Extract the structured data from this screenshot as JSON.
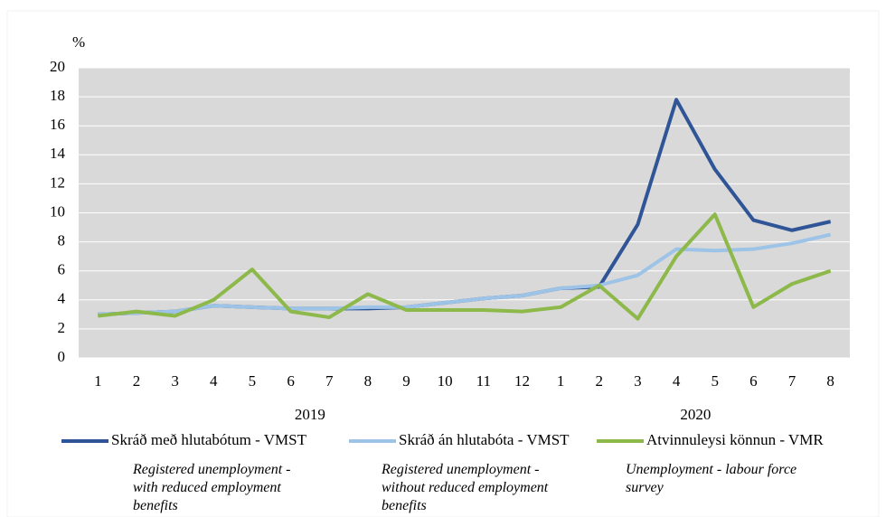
{
  "chart_data": {
    "type": "line",
    "y_label": "%",
    "groups": [
      {
        "label": "2019",
        "months": [
          "1",
          "2",
          "3",
          "4",
          "5",
          "6",
          "7",
          "8",
          "9",
          "10",
          "11",
          "12"
        ]
      },
      {
        "label": "2020",
        "months": [
          "1",
          "2",
          "3",
          "4",
          "5",
          "6",
          "7",
          "8"
        ]
      }
    ],
    "series": [
      {
        "name": "Skráð með hlutabótum - VMST",
        "color": "#2f5597",
        "values": [
          3.0,
          3.1,
          3.2,
          3.6,
          3.5,
          3.4,
          3.4,
          3.4,
          3.5,
          3.8,
          4.1,
          4.3,
          4.8,
          4.9,
          9.2,
          17.8,
          13.0,
          9.5,
          8.8,
          9.4
        ]
      },
      {
        "name": "Skráð án hlutabóta - VMST",
        "color": "#9dc3e6",
        "values": [
          3.0,
          3.1,
          3.2,
          3.6,
          3.5,
          3.4,
          3.4,
          3.5,
          3.5,
          3.8,
          4.1,
          4.3,
          4.8,
          5.0,
          5.7,
          7.5,
          7.4,
          7.5,
          7.9,
          8.5
        ]
      },
      {
        "name": "Atvinnuleysi könnun - VMR",
        "color": "#8db84a",
        "values": [
          2.9,
          3.2,
          2.9,
          4.0,
          6.1,
          3.2,
          2.8,
          4.4,
          3.3,
          3.3,
          3.3,
          3.2,
          3.5,
          5.0,
          2.7,
          7.0,
          9.9,
          3.5,
          5.1,
          6.0
        ]
      }
    ],
    "ylim": [
      0,
      20
    ],
    "yticks": [
      0,
      2,
      4,
      6,
      8,
      10,
      12,
      14,
      16,
      18,
      20
    ],
    "grid": true,
    "annotations": [
      "Registered unemployment - with reduced employment benefits",
      "Registered unemployment - without reduced employment benefits",
      "Unemployment - labour force survey"
    ]
  }
}
